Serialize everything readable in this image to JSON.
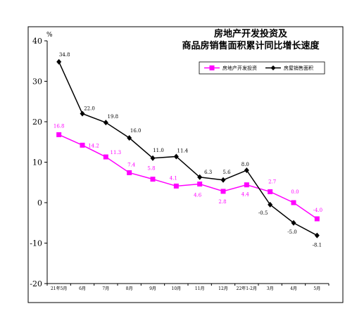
{
  "chart_data": {
    "type": "line",
    "title_lines": [
      "房地产开发投资及",
      "商品房销售面积累计同比增长速度"
    ],
    "xlabel": "",
    "ylabel": "%",
    "ylim": [
      -20,
      40
    ],
    "ytick_step": 10,
    "grid": false,
    "legend_position": "top-right",
    "data_labels": true,
    "categories": [
      "21年5月",
      "6月",
      "7月",
      "8月",
      "9月",
      "10月",
      "11月",
      "12月",
      "22年1-2月",
      "3月",
      "4月",
      "5月"
    ],
    "series": [
      {
        "name": "房地产开发投资",
        "color": "#ff00ff",
        "marker": "square",
        "values": [
          16.8,
          14.2,
          11.3,
          7.4,
          5.8,
          4.1,
          4.6,
          2.8,
          4.4,
          2.7,
          0.0,
          -4.0
        ]
      },
      {
        "name": "房屋销售面积",
        "color": "#000000",
        "marker": "diamond",
        "values": [
          34.8,
          22.0,
          19.8,
          16.0,
          11.0,
          11.4,
          6.3,
          5.6,
          8.0,
          -0.5,
          -5.0,
          -8.1
        ]
      }
    ]
  }
}
